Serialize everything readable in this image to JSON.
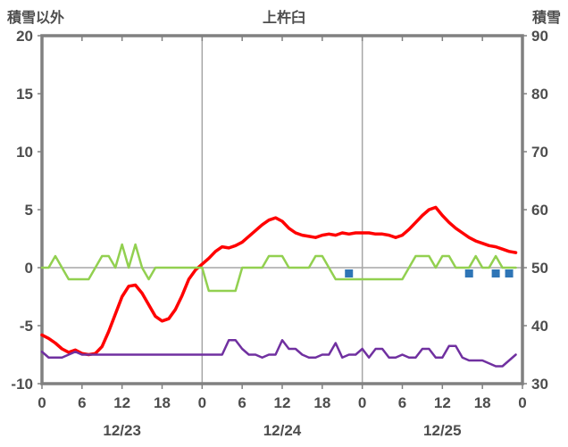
{
  "chart_data": {
    "type": "line",
    "title": "上杵臼",
    "left_axis_label": "積雪以外",
    "right_axis_label": "積雪",
    "left_axis": {
      "min": -10,
      "max": 20,
      "ticks": [
        20,
        15,
        10,
        5,
        0,
        -5,
        -10
      ]
    },
    "right_axis": {
      "min": 30,
      "max": 90,
      "ticks": [
        90,
        80,
        70,
        60,
        50,
        40,
        30
      ]
    },
    "x_axis": {
      "min_hour": 0,
      "max_hour": 72,
      "tick_hours": [
        0,
        6,
        12,
        18,
        24,
        30,
        36,
        42,
        48,
        54,
        60,
        66,
        72
      ],
      "tick_labels": [
        "0",
        "6",
        "12",
        "18",
        "0",
        "6",
        "12",
        "18",
        "0",
        "6",
        "12",
        "18",
        "0"
      ],
      "date_labels": [
        {
          "hour": 12,
          "label": "12/23"
        },
        {
          "hour": 36,
          "label": "12/24"
        },
        {
          "hour": 60,
          "label": "12/25"
        }
      ],
      "gridline_hours": [
        24,
        48
      ],
      "zero_line": 0
    },
    "colors": {
      "border": "#808080",
      "gridline": "#a6a6a6",
      "text": "#4d4d4d",
      "temperature": "#ff0000",
      "snowfall": "#92d050",
      "snow_depth": "#7030a0",
      "precipitation": "#2e75b6"
    },
    "series": [
      {
        "name": "temperature-line",
        "axis": "left",
        "color": "#ff0000",
        "width": 3.5,
        "values": [
          -5.8,
          -6.1,
          -6.5,
          -7.0,
          -7.3,
          -7.1,
          -7.4,
          -7.5,
          -7.4,
          -6.8,
          -5.5,
          -4.0,
          -2.5,
          -1.6,
          -1.5,
          -2.2,
          -3.2,
          -4.2,
          -4.6,
          -4.4,
          -3.6,
          -2.4,
          -1.0,
          -0.2,
          0.3,
          0.8,
          1.4,
          1.8,
          1.7,
          1.9,
          2.2,
          2.7,
          3.2,
          3.7,
          4.1,
          4.3,
          4.0,
          3.4,
          3.0,
          2.8,
          2.7,
          2.6,
          2.8,
          2.9,
          2.8,
          3.0,
          2.9,
          3.0,
          3.0,
          3.0,
          2.9,
          2.9,
          2.8,
          2.6,
          2.8,
          3.3,
          3.9,
          4.5,
          5.0,
          5.2,
          4.5,
          3.9,
          3.4,
          3.0,
          2.6,
          2.3,
          2.1,
          1.9,
          1.8,
          1.6,
          1.4,
          1.3
        ]
      },
      {
        "name": "snowfall-line",
        "axis": "left",
        "color": "#92d050",
        "width": 2.5,
        "values": [
          0,
          0,
          1,
          0,
          -1,
          -1,
          -1,
          -1,
          0,
          1,
          1,
          0,
          2,
          0,
          2,
          0,
          -1,
          0,
          0,
          0,
          0,
          0,
          0,
          0,
          0,
          -2,
          -2,
          -2,
          -2,
          -2,
          0,
          0,
          0,
          0,
          1,
          1,
          1,
          0,
          0,
          0,
          0,
          1,
          1,
          0,
          -1,
          -1,
          -1,
          -1,
          -1,
          -1,
          -1,
          -1,
          -1,
          -1,
          -1,
          0,
          1,
          1,
          1,
          0,
          1,
          1,
          0,
          0,
          0,
          1,
          0,
          0,
          1,
          0,
          0,
          0
        ]
      },
      {
        "name": "snow-depth-line",
        "axis": "right",
        "color": "#7030a0",
        "width": 2.5,
        "values": [
          35.5,
          34.5,
          34.5,
          34.5,
          35,
          35.5,
          35,
          35,
          35,
          35,
          35,
          35,
          35,
          35,
          35,
          35,
          35,
          35,
          35,
          35,
          35,
          35,
          35,
          35,
          35,
          35,
          35,
          35,
          37.5,
          37.5,
          36,
          35,
          35,
          34.5,
          35,
          35,
          37.5,
          36,
          36,
          35,
          34.5,
          34.5,
          35,
          35,
          37,
          34.5,
          35,
          35,
          36,
          34.5,
          36,
          36,
          34.5,
          34.5,
          35,
          34.5,
          34.5,
          36,
          36,
          34.5,
          34.5,
          36.5,
          36.5,
          34.5,
          34,
          34,
          34,
          33.5,
          33,
          33,
          34,
          35
        ]
      },
      {
        "name": "precipitation-markers",
        "axis": "left",
        "color": "#2e75b6",
        "marker": "square",
        "size": 9,
        "points": [
          {
            "hour": 46,
            "value": -0.5
          },
          {
            "hour": 64,
            "value": -0.5
          },
          {
            "hour": 68,
            "value": -0.5
          },
          {
            "hour": 70,
            "value": -0.5
          }
        ]
      }
    ]
  }
}
